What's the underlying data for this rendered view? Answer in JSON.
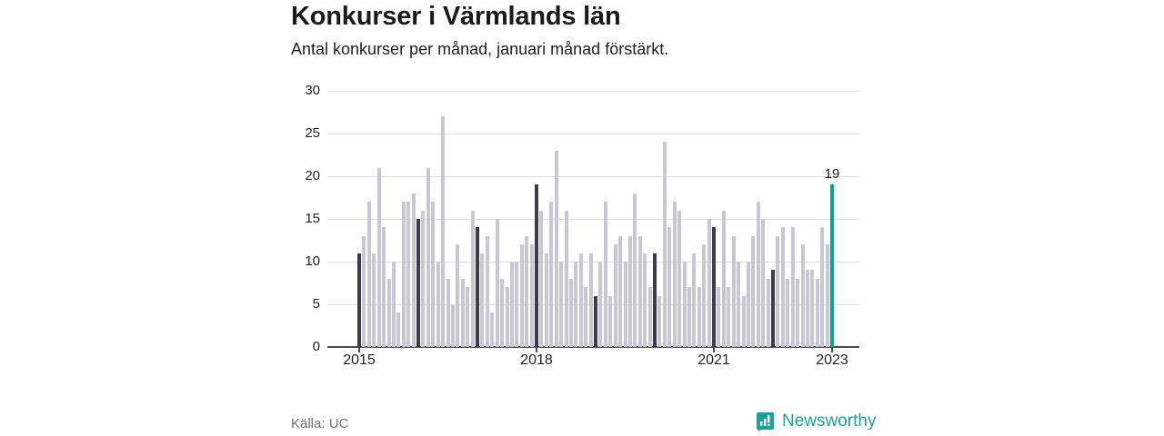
{
  "header": {
    "title": "Konkurser i Värmlands län",
    "subtitle": "Antal konkurser per månad, januari månad förstärkt."
  },
  "footer": {
    "source": "Källa: UC",
    "brand": "Newsworthy"
  },
  "chart_data": {
    "type": "bar",
    "title": "Konkurser i Värmlands län",
    "subtitle": "Antal konkurser per månad, januari månad förstärkt.",
    "x_unit": "månad",
    "x_range": "januari 2015 – januari 2023",
    "ylim": [
      0,
      30
    ],
    "y_ticks": [
      0,
      5,
      10,
      15,
      20,
      25,
      30
    ],
    "x_ticks": [
      {
        "label": "2015",
        "month_index": 0
      },
      {
        "label": "2018",
        "month_index": 36
      },
      {
        "label": "2021",
        "month_index": 72
      },
      {
        "label": "2023",
        "month_index": 96
      }
    ],
    "values_by_year": {
      "2015": [
        11,
        13,
        17,
        11,
        21,
        14,
        8,
        10,
        4,
        17,
        17,
        18
      ],
      "2016": [
        15,
        16,
        21,
        17,
        10,
        27,
        8,
        5,
        12,
        8,
        7,
        16
      ],
      "2017": [
        14,
        11,
        13,
        4,
        15,
        8,
        7,
        10,
        10,
        12,
        13,
        12
      ],
      "2018": [
        19,
        16,
        11,
        17,
        23,
        10,
        16,
        8,
        10,
        11,
        7,
        11
      ],
      "2019": [
        6,
        10,
        17,
        6,
        12,
        13,
        10,
        13,
        18,
        13,
        11,
        7
      ],
      "2020": [
        11,
        6,
        24,
        14,
        17,
        16,
        10,
        7,
        11,
        7,
        12,
        15
      ],
      "2021": [
        14,
        7,
        16,
        7,
        13,
        10,
        6,
        10,
        13,
        17,
        15,
        8
      ],
      "2022": [
        9,
        13,
        14,
        8,
        14,
        8,
        12,
        9,
        9,
        8,
        14,
        12
      ],
      "2023": [
        19
      ]
    },
    "highlighted_month": "januari",
    "last_value_label": "19",
    "colors": {
      "default_bar": "#c9c7d3",
      "january_bar": "#3c3c4e",
      "latest_bar": "#0aa396",
      "grid": "#dcdcdc",
      "axis": "#4a4a4a",
      "brand_teal": "#1f9f96"
    }
  }
}
